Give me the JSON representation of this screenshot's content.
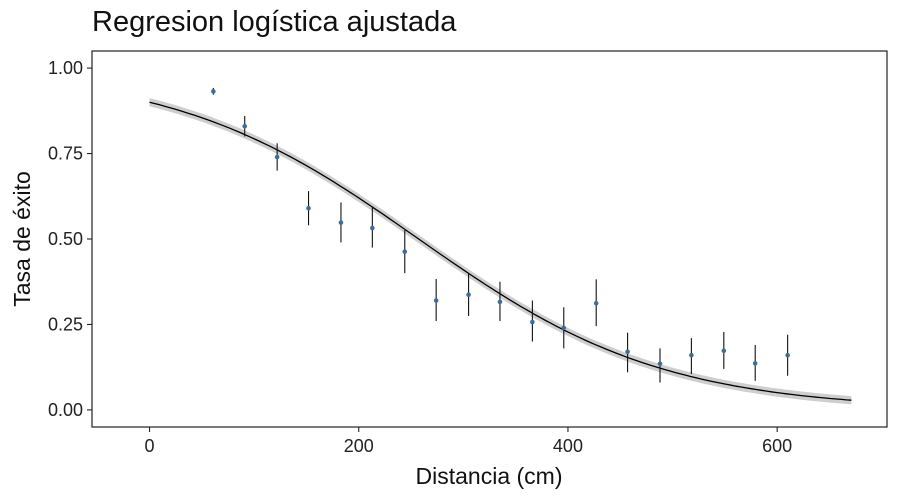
{
  "chart_data": {
    "type": "line",
    "title": "Regresion logística ajustada",
    "xlabel": "Distancia (cm)",
    "ylabel": "Tasa de éxito",
    "xlim": [
      -55,
      705
    ],
    "ylim": [
      -0.05,
      1.05
    ],
    "x_ticks": [
      0,
      200,
      400,
      600
    ],
    "x_tick_labels": [
      "0",
      "200",
      "400",
      "600"
    ],
    "y_ticks": [
      0,
      0.25,
      0.5,
      0.75,
      1
    ],
    "y_tick_labels": [
      "0.00",
      "0.25",
      "0.50",
      "0.75",
      "1.00"
    ],
    "grid": false,
    "fitted_curve": {
      "x_range": [
        0,
        671
      ],
      "intercept": 2.2,
      "slope": -0.00855,
      "band_halfwidth": 0.012,
      "line_color": "#000000",
      "band_color": "#bdbdbd"
    },
    "points": {
      "color": "#3b6e9e",
      "x": [
        61,
        91,
        122,
        152,
        183,
        213,
        244,
        274,
        305,
        335,
        366,
        396,
        427,
        457,
        488,
        518,
        549,
        579,
        610
      ],
      "y": [
        0.932,
        0.83,
        0.74,
        0.59,
        0.548,
        0.532,
        0.463,
        0.32,
        0.337,
        0.316,
        0.257,
        0.24,
        0.312,
        0.17,
        0.135,
        0.16,
        0.173,
        0.136,
        0.16
      ],
      "ymin": [
        0.922,
        0.8,
        0.7,
        0.54,
        0.49,
        0.475,
        0.4,
        0.26,
        0.275,
        0.26,
        0.2,
        0.18,
        0.245,
        0.11,
        0.08,
        0.105,
        0.12,
        0.085,
        0.1
      ],
      "ymax": [
        0.942,
        0.86,
        0.78,
        0.64,
        0.607,
        0.592,
        0.526,
        0.383,
        0.4,
        0.375,
        0.32,
        0.3,
        0.382,
        0.226,
        0.18,
        0.21,
        0.228,
        0.19,
        0.22
      ]
    }
  }
}
